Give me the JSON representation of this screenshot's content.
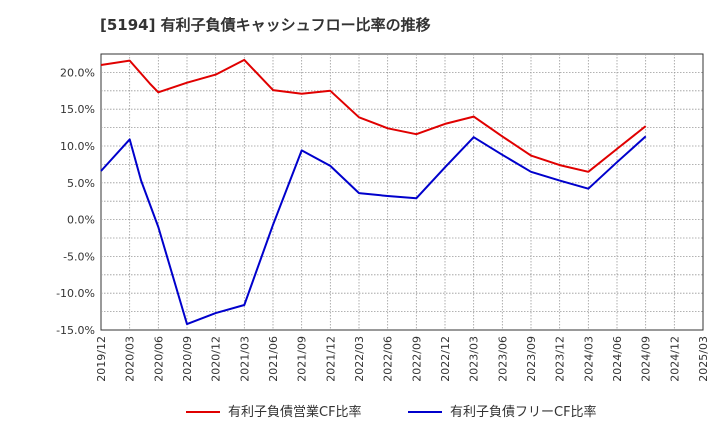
{
  "chart_data": {
    "type": "line",
    "title": "[5194]  有利子負債キャッシュフロー比率の推移",
    "xlabel": "",
    "ylabel": "",
    "ylim": [
      -15,
      22.5
    ],
    "y_ticks": [
      "-15.0%",
      "-10.0%",
      "-5.0%",
      "0.0%",
      "5.0%",
      "10.0%",
      "15.0%",
      "20.0%"
    ],
    "y_tick_values": [
      -15,
      -10,
      -5,
      0,
      5,
      10,
      15,
      20
    ],
    "categories": [
      "2019/12",
      "2020/03",
      "2020/06",
      "2020/09",
      "2020/12",
      "2021/03",
      "2021/06",
      "2021/09",
      "2021/12",
      "2022/03",
      "2022/06",
      "2022/09",
      "2022/12",
      "2023/03",
      "2023/06",
      "2023/09",
      "2023/12",
      "2024/03",
      "2024/06",
      "2024/09",
      "2024/12",
      "2025/03"
    ],
    "grid": true,
    "legend_position": "bottom",
    "series": [
      {
        "name": "有利子負債営業CF比率",
        "color": "#e00000",
        "points": [
          {
            "x": 0,
            "y": 21.0
          },
          {
            "x": 1,
            "y": 21.6
          },
          {
            "x": 1.7,
            "y": 18.5
          },
          {
            "x": 2,
            "y": 17.3
          },
          {
            "x": 3,
            "y": 18.6
          },
          {
            "x": 4,
            "y": 19.7
          },
          {
            "x": 5,
            "y": 21.7
          },
          {
            "x": 6,
            "y": 17.6
          },
          {
            "x": 7,
            "y": 17.1
          },
          {
            "x": 8,
            "y": 17.5
          },
          {
            "x": 9,
            "y": 13.9
          },
          {
            "x": 10,
            "y": 12.4
          },
          {
            "x": 11,
            "y": 11.6
          },
          {
            "x": 12,
            "y": 13.0
          },
          {
            "x": 13,
            "y": 14.0
          },
          {
            "x": 14,
            "y": 11.3
          },
          {
            "x": 15,
            "y": 8.7
          },
          {
            "x": 16,
            "y": 7.4
          },
          {
            "x": 17,
            "y": 6.5
          },
          {
            "x": 18,
            "y": 9.6
          },
          {
            "x": 19,
            "y": 12.7
          }
        ]
      },
      {
        "name": "有利子負債フリーCF比率",
        "color": "#0000cc",
        "points": [
          {
            "x": 0,
            "y": 6.6
          },
          {
            "x": 1,
            "y": 10.9
          },
          {
            "x": 1.4,
            "y": 5.3
          },
          {
            "x": 2,
            "y": -1.0
          },
          {
            "x": 3,
            "y": -14.2
          },
          {
            "x": 4,
            "y": -12.7
          },
          {
            "x": 5,
            "y": -11.6
          },
          {
            "x": 6,
            "y": -0.7
          },
          {
            "x": 7,
            "y": 9.4
          },
          {
            "x": 8,
            "y": 7.3
          },
          {
            "x": 9,
            "y": 3.6
          },
          {
            "x": 10,
            "y": 3.2
          },
          {
            "x": 11,
            "y": 2.9
          },
          {
            "x": 12,
            "y": 7.1
          },
          {
            "x": 13,
            "y": 11.2
          },
          {
            "x": 14,
            "y": 8.8
          },
          {
            "x": 15,
            "y": 6.5
          },
          {
            "x": 16,
            "y": 5.3
          },
          {
            "x": 17,
            "y": 4.2
          },
          {
            "x": 18,
            "y": 7.8
          },
          {
            "x": 19,
            "y": 11.3
          }
        ]
      }
    ]
  }
}
